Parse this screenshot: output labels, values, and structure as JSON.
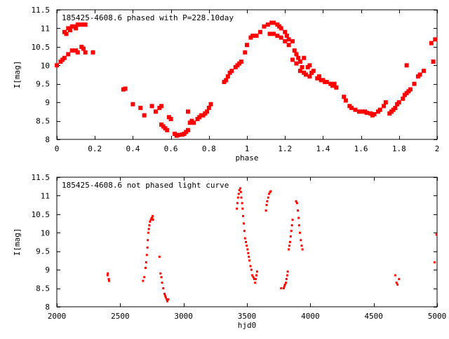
{
  "chart_data": [
    {
      "type": "scatter",
      "title": "185425-4608.6 phased with P=228.10day",
      "xlabel": "phase",
      "ylabel": "I[mag]",
      "xlim": [
        0,
        2
      ],
      "ylim": [
        11.5,
        8
      ],
      "y_inverted": true,
      "grid": false,
      "xticks": [
        "0",
        "0.2",
        "0.4",
        "0.6",
        "0.8",
        "1",
        "1.2",
        "1.4",
        "1.6",
        "1.8",
        "2"
      ],
      "xtick_values": [
        0,
        0.2,
        0.4,
        0.6,
        0.8,
        1,
        1.2,
        1.4,
        1.6,
        1.8,
        2
      ],
      "yticks": [
        "8",
        "8.5",
        "9",
        "9.5",
        "10",
        "10.5",
        "11",
        "11.5"
      ],
      "ytick_values": [
        8,
        8.5,
        9,
        9.5,
        10,
        10.5,
        11,
        11.5
      ],
      "marker": "filled-square",
      "color": "#ff0000",
      "points": [
        [
          0.0,
          10.0
        ],
        [
          0.02,
          10.1
        ],
        [
          0.03,
          10.15
        ],
        [
          0.04,
          10.2
        ],
        [
          0.06,
          10.3
        ],
        [
          0.08,
          10.4
        ],
        [
          0.1,
          10.4
        ],
        [
          0.11,
          10.35
        ],
        [
          0.13,
          10.5
        ],
        [
          0.14,
          10.45
        ],
        [
          0.15,
          10.35
        ],
        [
          0.19,
          10.35
        ],
        [
          0.04,
          10.9
        ],
        [
          0.05,
          10.85
        ],
        [
          0.06,
          11.0
        ],
        [
          0.07,
          10.95
        ],
        [
          0.08,
          11.05
        ],
        [
          0.09,
          11.05
        ],
        [
          0.1,
          11.0
        ],
        [
          0.11,
          11.1
        ],
        [
          0.12,
          11.1
        ],
        [
          0.14,
          11.1
        ],
        [
          0.15,
          11.1
        ],
        [
          0.35,
          9.35
        ],
        [
          0.36,
          9.37
        ],
        [
          0.4,
          8.95
        ],
        [
          0.44,
          8.85
        ],
        [
          0.46,
          8.65
        ],
        [
          0.5,
          8.9
        ],
        [
          0.52,
          8.75
        ],
        [
          0.54,
          8.85
        ],
        [
          0.55,
          8.9
        ],
        [
          0.55,
          8.4
        ],
        [
          0.56,
          8.35
        ],
        [
          0.57,
          8.3
        ],
        [
          0.58,
          8.25
        ],
        [
          0.59,
          8.6
        ],
        [
          0.6,
          8.55
        ],
        [
          0.62,
          8.15
        ],
        [
          0.63,
          8.1
        ],
        [
          0.64,
          8.12
        ],
        [
          0.66,
          8.13
        ],
        [
          0.67,
          8.15
        ],
        [
          0.68,
          8.2
        ],
        [
          0.69,
          8.25
        ],
        [
          0.69,
          8.75
        ],
        [
          0.7,
          8.45
        ],
        [
          0.71,
          8.5
        ],
        [
          0.72,
          8.45
        ],
        [
          0.74,
          8.55
        ],
        [
          0.75,
          8.6
        ],
        [
          0.76,
          8.65
        ],
        [
          0.77,
          8.65
        ],
        [
          0.78,
          8.7
        ],
        [
          0.79,
          8.75
        ],
        [
          0.8,
          8.85
        ],
        [
          0.81,
          8.95
        ],
        [
          0.88,
          9.55
        ],
        [
          0.89,
          9.6
        ],
        [
          0.9,
          9.7
        ],
        [
          0.91,
          9.8
        ],
        [
          0.92,
          9.85
        ],
        [
          0.94,
          9.95
        ],
        [
          0.95,
          10.0
        ],
        [
          0.96,
          10.05
        ],
        [
          0.97,
          10.1
        ],
        [
          0.99,
          10.35
        ],
        [
          1.0,
          10.55
        ],
        [
          1.02,
          10.75
        ],
        [
          1.03,
          10.8
        ],
        [
          1.05,
          10.8
        ],
        [
          1.07,
          10.9
        ],
        [
          1.09,
          11.05
        ],
        [
          1.11,
          11.1
        ],
        [
          1.13,
          11.15
        ],
        [
          1.14,
          11.15
        ],
        [
          1.16,
          11.1
        ],
        [
          1.17,
          11.05
        ],
        [
          1.18,
          11.0
        ],
        [
          1.2,
          10.9
        ],
        [
          1.21,
          10.8
        ],
        [
          1.22,
          10.7
        ],
        [
          1.24,
          10.65
        ],
        [
          1.25,
          10.4
        ],
        [
          1.26,
          10.3
        ],
        [
          1.27,
          10.2
        ],
        [
          1.28,
          10.1
        ],
        [
          1.29,
          9.95
        ],
        [
          1.3,
          9.8
        ],
        [
          1.31,
          9.75
        ],
        [
          1.33,
          9.7
        ],
        [
          1.34,
          9.8
        ],
        [
          1.35,
          9.85
        ],
        [
          1.37,
          9.65
        ],
        [
          1.38,
          9.7
        ],
        [
          1.39,
          9.6
        ],
        [
          1.4,
          9.6
        ],
        [
          1.41,
          9.55
        ],
        [
          1.42,
          9.55
        ],
        [
          1.44,
          9.5
        ],
        [
          1.45,
          9.45
        ],
        [
          1.46,
          9.5
        ],
        [
          1.47,
          9.4
        ],
        [
          1.12,
          10.85
        ],
        [
          1.14,
          10.85
        ],
        [
          1.16,
          10.8
        ],
        [
          1.18,
          10.75
        ],
        [
          1.2,
          10.65
        ],
        [
          1.22,
          10.55
        ],
        [
          1.24,
          10.15
        ],
        [
          1.26,
          10.05
        ],
        [
          1.28,
          9.85
        ],
        [
          1.32,
          9.95
        ],
        [
          1.33,
          10.0
        ],
        [
          1.3,
          10.2
        ],
        [
          1.51,
          9.15
        ],
        [
          1.52,
          9.05
        ],
        [
          1.54,
          8.9
        ],
        [
          1.55,
          8.85
        ],
        [
          1.57,
          8.8
        ],
        [
          1.59,
          8.75
        ],
        [
          1.61,
          8.75
        ],
        [
          1.62,
          8.75
        ],
        [
          1.63,
          8.72
        ],
        [
          1.65,
          8.7
        ],
        [
          1.66,
          8.65
        ],
        [
          1.67,
          8.68
        ],
        [
          1.69,
          8.75
        ],
        [
          1.7,
          8.8
        ],
        [
          1.72,
          8.9
        ],
        [
          1.73,
          9.0
        ],
        [
          1.75,
          8.7
        ],
        [
          1.76,
          8.75
        ],
        [
          1.77,
          8.8
        ],
        [
          1.78,
          8.85
        ],
        [
          1.79,
          8.95
        ],
        [
          1.8,
          9.0
        ],
        [
          1.82,
          9.1
        ],
        [
          1.83,
          9.2
        ],
        [
          1.84,
          9.25
        ],
        [
          1.85,
          9.3
        ],
        [
          1.86,
          9.35
        ],
        [
          1.88,
          9.5
        ],
        [
          1.9,
          9.7
        ],
        [
          1.91,
          9.75
        ],
        [
          1.93,
          9.85
        ],
        [
          1.84,
          10.0
        ],
        [
          1.98,
          10.1
        ],
        [
          1.97,
          10.6
        ],
        [
          1.99,
          10.7
        ]
      ]
    },
    {
      "type": "scatter",
      "title": "185425-4608.6 not phased light curve",
      "xlabel": "hjd0",
      "ylabel": "I[mag]",
      "xlim": [
        2000,
        5000
      ],
      "ylim": [
        11.5,
        8
      ],
      "y_inverted": true,
      "grid": false,
      "xticks": [
        "2000",
        "2500",
        "3000",
        "3500",
        "4000",
        "4500",
        "5000"
      ],
      "xtick_values": [
        2000,
        2500,
        3000,
        3500,
        4000,
        4500,
        5000
      ],
      "yticks": [
        "8",
        "8.5",
        "9",
        "9.5",
        "10",
        "10.5",
        "11",
        "11.5"
      ],
      "ytick_values": [
        8,
        8.5,
        9,
        9.5,
        10,
        10.5,
        11,
        11.5
      ],
      "marker": "small-dot",
      "color": "#ff0000",
      "points": [
        [
          2400,
          8.85
        ],
        [
          2402,
          8.9
        ],
        [
          2410,
          8.75
        ],
        [
          2412,
          8.7
        ],
        [
          2680,
          8.7
        ],
        [
          2690,
          8.8
        ],
        [
          2700,
          9.05
        ],
        [
          2705,
          9.2
        ],
        [
          2710,
          9.4
        ],
        [
          2715,
          9.6
        ],
        [
          2718,
          9.8
        ],
        [
          2722,
          10.0
        ],
        [
          2726,
          10.1
        ],
        [
          2730,
          10.2
        ],
        [
          2735,
          10.3
        ],
        [
          2742,
          10.35
        ],
        [
          2748,
          10.4
        ],
        [
          2752,
          10.4
        ],
        [
          2756,
          10.45
        ],
        [
          2760,
          10.35
        ],
        [
          2810,
          9.35
        ],
        [
          2818,
          8.9
        ],
        [
          2825,
          8.8
        ],
        [
          2830,
          8.65
        ],
        [
          2840,
          8.5
        ],
        [
          2850,
          8.35
        ],
        [
          2855,
          8.3
        ],
        [
          2860,
          8.25
        ],
        [
          2868,
          8.2
        ],
        [
          2872,
          8.15
        ],
        [
          2880,
          8.2
        ],
        [
          3420,
          10.65
        ],
        [
          3425,
          10.8
        ],
        [
          3430,
          10.95
        ],
        [
          3435,
          11.05
        ],
        [
          3440,
          11.15
        ],
        [
          3448,
          11.2
        ],
        [
          3452,
          11.1
        ],
        [
          3456,
          10.95
        ],
        [
          3462,
          10.8
        ],
        [
          3466,
          10.65
        ],
        [
          3470,
          10.45
        ],
        [
          3475,
          10.25
        ],
        [
          3480,
          10.05
        ],
        [
          3485,
          9.85
        ],
        [
          3492,
          9.75
        ],
        [
          3498,
          9.65
        ],
        [
          3505,
          9.55
        ],
        [
          3510,
          9.45
        ],
        [
          3515,
          9.35
        ],
        [
          3520,
          9.25
        ],
        [
          3528,
          9.1
        ],
        [
          3535,
          9.0
        ],
        [
          3542,
          8.85
        ],
        [
          3550,
          8.8
        ],
        [
          3558,
          8.75
        ],
        [
          3565,
          8.65
        ],
        [
          3570,
          8.75
        ],
        [
          3575,
          8.85
        ],
        [
          3580,
          8.95
        ],
        [
          3650,
          10.6
        ],
        [
          3655,
          10.75
        ],
        [
          3660,
          10.85
        ],
        [
          3668,
          10.95
        ],
        [
          3675,
          11.05
        ],
        [
          3682,
          11.1
        ],
        [
          3688,
          11.12
        ],
        [
          3770,
          8.5
        ],
        [
          3790,
          8.5
        ],
        [
          3795,
          8.55
        ],
        [
          3800,
          8.6
        ],
        [
          3808,
          8.65
        ],
        [
          3812,
          8.75
        ],
        [
          3818,
          8.85
        ],
        [
          3822,
          8.95
        ],
        [
          3830,
          9.55
        ],
        [
          3835,
          9.65
        ],
        [
          3840,
          9.75
        ],
        [
          3845,
          9.9
        ],
        [
          3850,
          10.05
        ],
        [
          3855,
          10.2
        ],
        [
          3860,
          10.35
        ],
        [
          3888,
          10.85
        ],
        [
          3895,
          10.8
        ],
        [
          3902,
          10.6
        ],
        [
          3908,
          10.4
        ],
        [
          3912,
          10.2
        ],
        [
          3918,
          10.0
        ],
        [
          3925,
          9.8
        ],
        [
          3932,
          9.65
        ],
        [
          3938,
          9.55
        ],
        [
          4670,
          8.85
        ],
        [
          4680,
          8.65
        ],
        [
          4688,
          8.6
        ],
        [
          4700,
          8.75
        ],
        [
          4980,
          9.2
        ],
        [
          4995,
          9.95
        ]
      ]
    }
  ]
}
